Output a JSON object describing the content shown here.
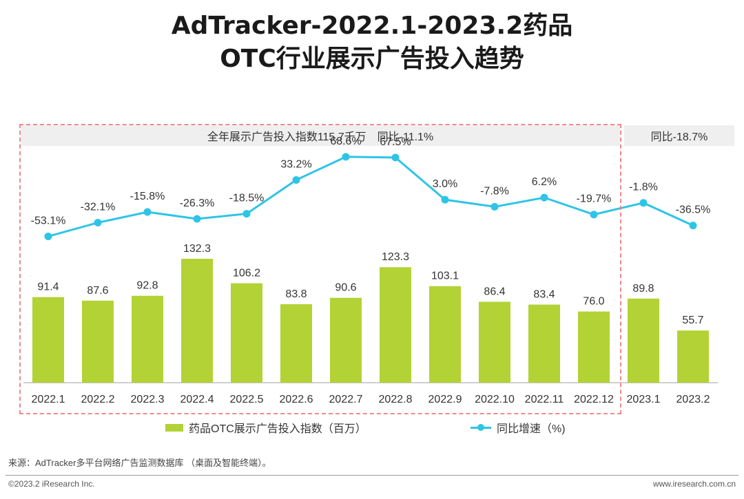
{
  "title": {
    "line1": "AdTracker-2022.1-2023.2药品",
    "line2": "OTC行业展示广告投入趋势"
  },
  "banner": {
    "year_summary": "全年展示广告投入指数115.7千万　同比-11.1%",
    "yoy_2023": "同比-18.7%"
  },
  "legend": {
    "bar_label": "药品OTC展示广告投入指数（百万）",
    "line_label": "同比增速（%)"
  },
  "source": "来源：AdTracker多平台网络广告监测数据库 （桌面及智能终端）。",
  "footer": {
    "copyright": "©2023.2 iResearch Inc.",
    "website": "www.iresearch.com.cn"
  },
  "colors": {
    "bar": "#b2d235",
    "line": "#2ec4e6",
    "highlight_border": "#f08a8a"
  },
  "chart_data": {
    "type": "bar",
    "title": "AdTracker-2022.1-2023.2药品OTC行业展示广告投入趋势",
    "categories": [
      "2022.1",
      "2022.2",
      "2022.3",
      "2022.4",
      "2022.5",
      "2022.6",
      "2022.7",
      "2022.8",
      "2022.9",
      "2022.10",
      "2022.11",
      "2022.12",
      "2023.1",
      "2023.2"
    ],
    "series": [
      {
        "name": "药品OTC展示广告投入指数（百万）",
        "type": "bar",
        "values": [
          91.4,
          87.6,
          92.8,
          132.3,
          106.2,
          83.8,
          90.6,
          123.3,
          103.1,
          86.4,
          83.4,
          76.0,
          89.8,
          55.7
        ],
        "labels": [
          "91.4",
          "87.6",
          "92.8",
          "132.3",
          "106.2",
          "83.8",
          "90.6",
          "123.3",
          "103.1",
          "86.4",
          "83.4",
          "76.0",
          "89.8",
          "55.7"
        ]
      },
      {
        "name": "同比增速（%)",
        "type": "line",
        "values": [
          -53.1,
          -32.1,
          -15.8,
          -26.3,
          -18.5,
          33.2,
          68.6,
          67.5,
          3.0,
          -7.8,
          6.2,
          -19.7,
          -1.8,
          -36.5
        ],
        "labels": [
          "-53.1%",
          "-32.1%",
          "-15.8%",
          "-26.3%",
          "-18.5%",
          "33.2%",
          "68.6%",
          "67.5%",
          "3.0%",
          "-7.8%",
          "6.2%",
          "-19.7%",
          "-1.8%",
          "-36.5%"
        ]
      }
    ],
    "bar_ylim": [
      0,
      140
    ],
    "line_ylim": [
      -60,
      70
    ],
    "xlabel": "",
    "ylabel": "",
    "grid": false
  }
}
